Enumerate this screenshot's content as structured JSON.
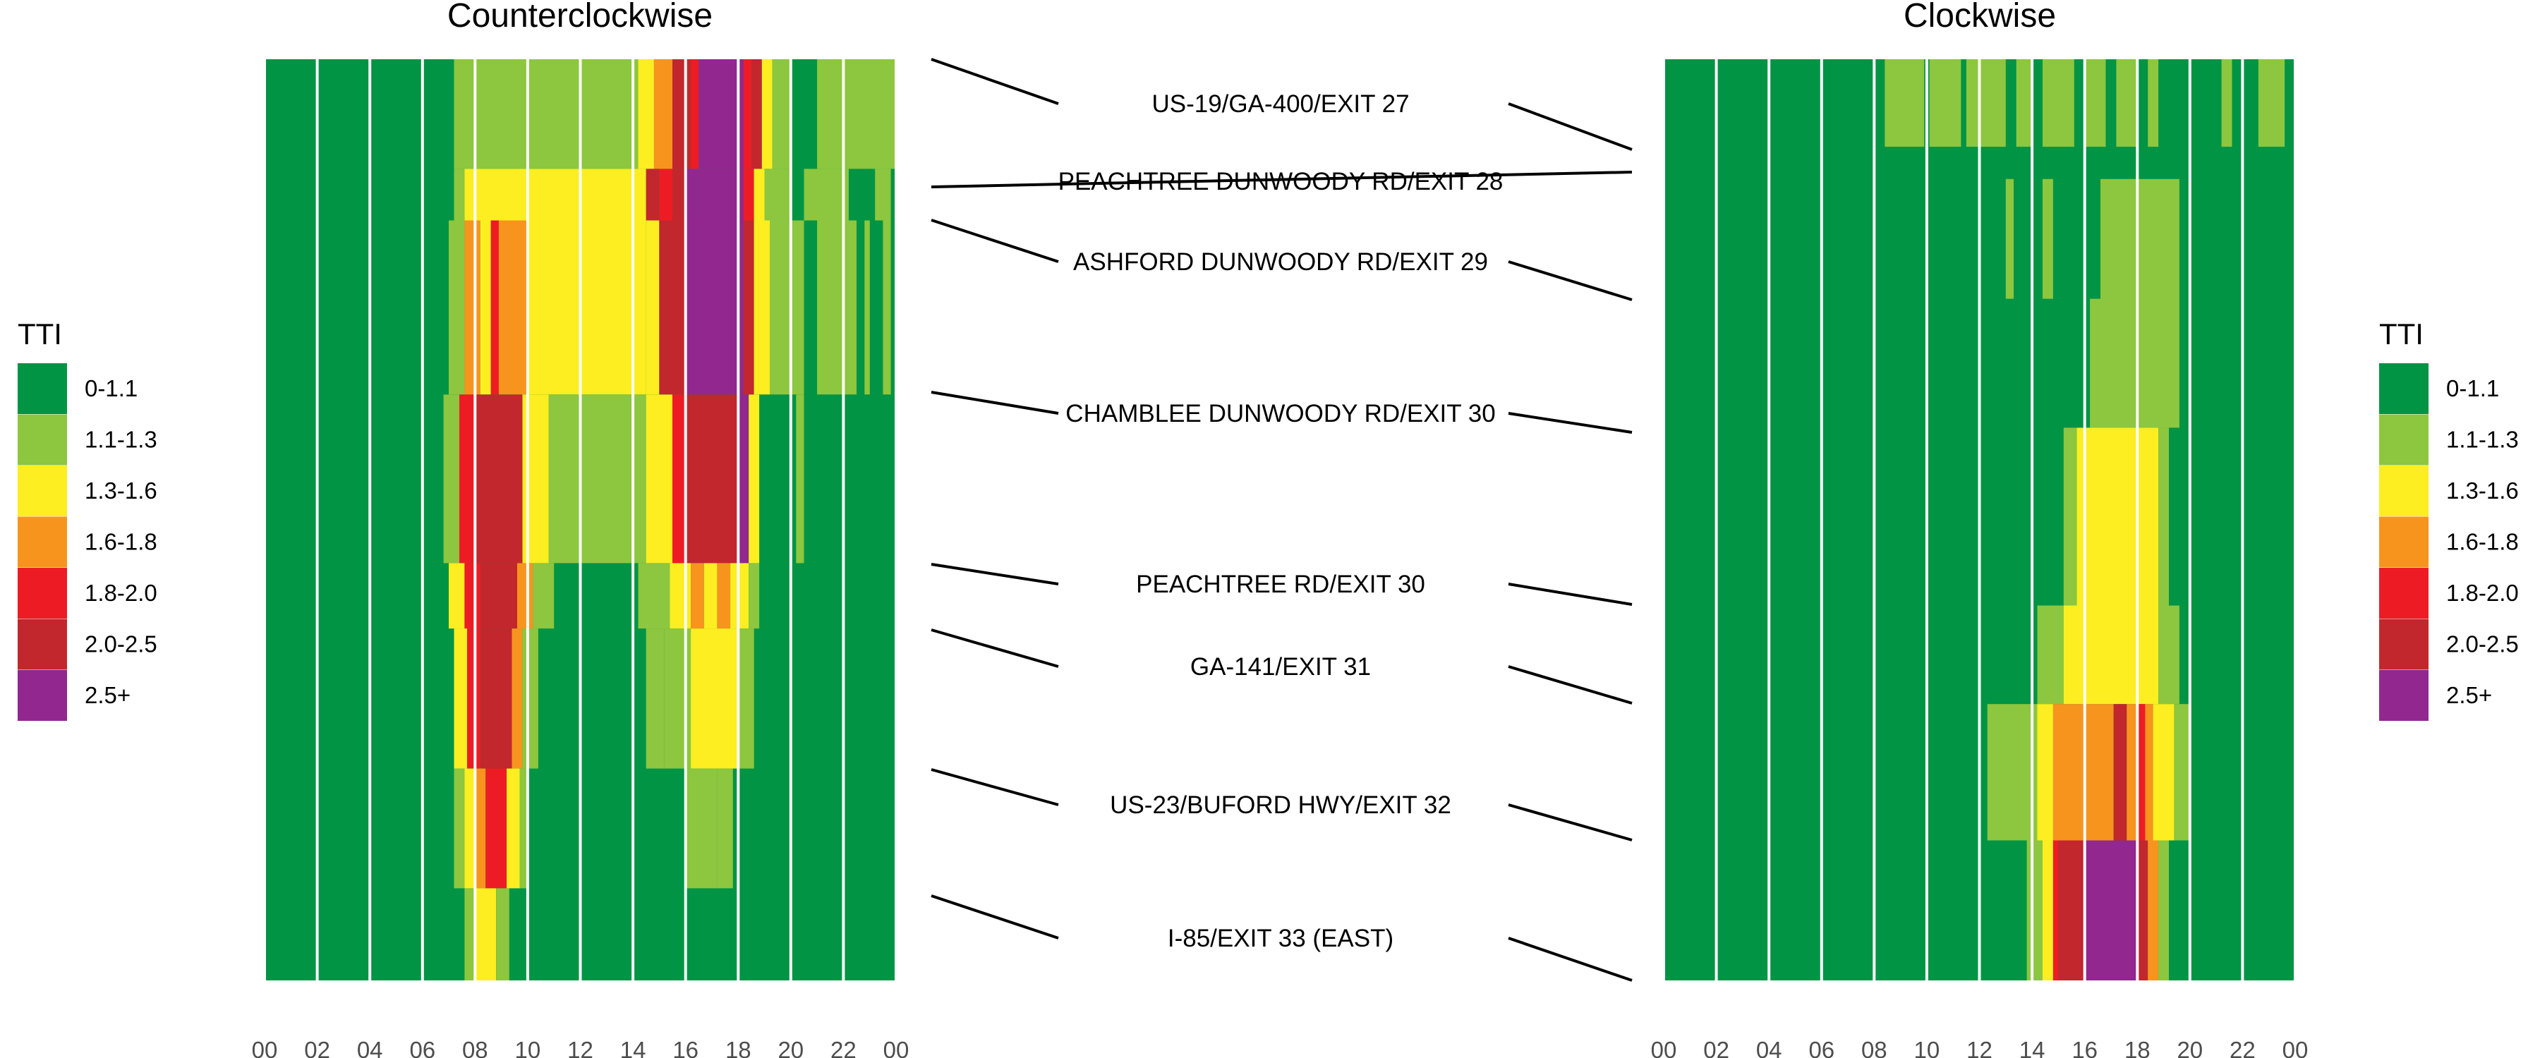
{
  "chart_data": {
    "type": "heatmap",
    "legend_title": "TTI",
    "categories": [
      "0-1.1",
      "1.1-1.3",
      "1.3-1.6",
      "1.6-1.8",
      "1.8-2.0",
      "2.0-2.5",
      "2.5+"
    ],
    "colors": [
      "#009444",
      "#8dc63f",
      "#fcee21",
      "#f7941e",
      "#ed1c24",
      "#c1272d",
      "#92278f"
    ],
    "x_tick_labels": [
      "00",
      "02",
      "04",
      "06",
      "08",
      "10",
      "12",
      "14",
      "16",
      "18",
      "20",
      "22",
      "00"
    ],
    "x_range_hours": [
      0,
      24
    ],
    "exits": [
      "US-19/GA-400/EXIT 27",
      "PEACHTREE DUNWOODY RD/EXIT 28",
      "ASHFORD DUNWOODY RD/EXIT 29",
      "CHAMBLEE DUNWOODY RD/EXIT 30",
      "PEACHTREE RD/EXIT 30",
      "GA-141/EXIT 31",
      "US-23/BUFORD HWY/EXIT 32",
      "I-85/EXIT 33 (EAST)"
    ],
    "panels": [
      {
        "title": "Counterclockwise",
        "y_bands": [
          0,
          0.119,
          0.175,
          0.364,
          0.547,
          0.618,
          0.77,
          0.9,
          1.0
        ],
        "cells": [
          {
            "t0": 7.2,
            "t1": 14.2,
            "y0": 0,
            "y1": 0.119,
            "c": 1
          },
          {
            "t0": 14.2,
            "t1": 14.8,
            "y0": 0,
            "y1": 0.119,
            "c": 2
          },
          {
            "t0": 14.8,
            "t1": 15.5,
            "y0": 0,
            "y1": 0.119,
            "c": 3
          },
          {
            "t0": 15.5,
            "t1": 16.2,
            "y0": 0,
            "y1": 0.119,
            "c": 5
          },
          {
            "t0": 16.2,
            "t1": 16.5,
            "y0": 0,
            "y1": 0.119,
            "c": 4
          },
          {
            "t0": 16.5,
            "t1": 18.2,
            "y0": 0,
            "y1": 0.119,
            "c": 6
          },
          {
            "t0": 18.2,
            "t1": 18.5,
            "y0": 0,
            "y1": 0.119,
            "c": 4
          },
          {
            "t0": 18.5,
            "t1": 18.9,
            "y0": 0,
            "y1": 0.119,
            "c": 5
          },
          {
            "t0": 18.9,
            "t1": 19.3,
            "y0": 0,
            "y1": 0.119,
            "c": 2
          },
          {
            "t0": 19.3,
            "t1": 20.0,
            "y0": 0,
            "y1": 0.119,
            "c": 1
          },
          {
            "t0": 21.0,
            "t1": 24.0,
            "y0": 0,
            "y1": 0.119,
            "c": 1
          },
          {
            "t0": 7.2,
            "t1": 7.6,
            "y0": 0.119,
            "y1": 0.175,
            "c": 1
          },
          {
            "t0": 7.6,
            "t1": 14.5,
            "y0": 0.119,
            "y1": 0.175,
            "c": 2
          },
          {
            "t0": 14.5,
            "t1": 15.0,
            "y0": 0.119,
            "y1": 0.175,
            "c": 5
          },
          {
            "t0": 15.0,
            "t1": 15.5,
            "y0": 0.119,
            "y1": 0.175,
            "c": 4
          },
          {
            "t0": 15.5,
            "t1": 16.0,
            "y0": 0.119,
            "y1": 0.175,
            "c": 5
          },
          {
            "t0": 16.0,
            "t1": 16.5,
            "y0": 0.119,
            "y1": 0.175,
            "c": 6
          },
          {
            "t0": 16.5,
            "t1": 18.2,
            "y0": 0.119,
            "y1": 0.175,
            "c": 6
          },
          {
            "t0": 18.2,
            "t1": 18.6,
            "y0": 0.119,
            "y1": 0.175,
            "c": 4
          },
          {
            "t0": 18.6,
            "t1": 19.0,
            "y0": 0.119,
            "y1": 0.175,
            "c": 2
          },
          {
            "t0": 19.0,
            "t1": 20.0,
            "y0": 0.119,
            "y1": 0.175,
            "c": 1
          },
          {
            "t0": 20.5,
            "t1": 22.2,
            "y0": 0.119,
            "y1": 0.175,
            "c": 1
          },
          {
            "t0": 23.2,
            "t1": 23.8,
            "y0": 0.119,
            "y1": 0.175,
            "c": 1
          },
          {
            "t0": 7.0,
            "t1": 7.6,
            "y0": 0.175,
            "y1": 0.364,
            "c": 1
          },
          {
            "t0": 7.6,
            "t1": 8.2,
            "y0": 0.175,
            "y1": 0.364,
            "c": 3
          },
          {
            "t0": 8.2,
            "t1": 8.6,
            "y0": 0.175,
            "y1": 0.364,
            "c": 2
          },
          {
            "t0": 8.6,
            "t1": 8.9,
            "y0": 0.175,
            "y1": 0.364,
            "c": 4
          },
          {
            "t0": 8.9,
            "t1": 10.0,
            "y0": 0.175,
            "y1": 0.364,
            "c": 3
          },
          {
            "t0": 10.0,
            "t1": 14.5,
            "y0": 0.175,
            "y1": 0.364,
            "c": 2
          },
          {
            "t0": 14.5,
            "t1": 15.0,
            "y0": 0.175,
            "y1": 0.364,
            "c": 2
          },
          {
            "t0": 15.0,
            "t1": 16.0,
            "y0": 0.175,
            "y1": 0.364,
            "c": 5
          },
          {
            "t0": 16.0,
            "t1": 18.2,
            "y0": 0.175,
            "y1": 0.364,
            "c": 6
          },
          {
            "t0": 18.2,
            "t1": 18.6,
            "y0": 0.175,
            "y1": 0.364,
            "c": 5
          },
          {
            "t0": 18.6,
            "t1": 19.2,
            "y0": 0.175,
            "y1": 0.364,
            "c": 2
          },
          {
            "t0": 19.2,
            "t1": 20.5,
            "y0": 0.175,
            "y1": 0.364,
            "c": 1
          },
          {
            "t0": 21.0,
            "t1": 22.5,
            "y0": 0.175,
            "y1": 0.364,
            "c": 1
          },
          {
            "t0": 22.8,
            "t1": 23.0,
            "y0": 0.175,
            "y1": 0.364,
            "c": 1
          },
          {
            "t0": 23.5,
            "t1": 23.8,
            "y0": 0.175,
            "y1": 0.364,
            "c": 1
          },
          {
            "t0": 6.8,
            "t1": 7.4,
            "y0": 0.364,
            "y1": 0.547,
            "c": 1
          },
          {
            "t0": 7.4,
            "t1": 8.0,
            "y0": 0.364,
            "y1": 0.547,
            "c": 4
          },
          {
            "t0": 8.0,
            "t1": 9.8,
            "y0": 0.364,
            "y1": 0.547,
            "c": 5
          },
          {
            "t0": 9.8,
            "t1": 10.8,
            "y0": 0.364,
            "y1": 0.547,
            "c": 2
          },
          {
            "t0": 10.8,
            "t1": 14.5,
            "y0": 0.364,
            "y1": 0.547,
            "c": 1
          },
          {
            "t0": 14.5,
            "t1": 15.5,
            "y0": 0.364,
            "y1": 0.547,
            "c": 2
          },
          {
            "t0": 15.5,
            "t1": 16.0,
            "y0": 0.364,
            "y1": 0.547,
            "c": 4
          },
          {
            "t0": 16.0,
            "t1": 18.0,
            "y0": 0.364,
            "y1": 0.547,
            "c": 5
          },
          {
            "t0": 18.0,
            "t1": 18.4,
            "y0": 0.364,
            "y1": 0.547,
            "c": 6
          },
          {
            "t0": 18.4,
            "t1": 18.8,
            "y0": 0.364,
            "y1": 0.547,
            "c": 2
          },
          {
            "t0": 20.2,
            "t1": 20.5,
            "y0": 0.364,
            "y1": 0.547,
            "c": 1
          },
          {
            "t0": 7.0,
            "t1": 7.6,
            "y0": 0.547,
            "y1": 0.618,
            "c": 2
          },
          {
            "t0": 7.6,
            "t1": 8.2,
            "y0": 0.547,
            "y1": 0.618,
            "c": 4
          },
          {
            "t0": 8.2,
            "t1": 9.6,
            "y0": 0.547,
            "y1": 0.618,
            "c": 5
          },
          {
            "t0": 9.6,
            "t1": 10.2,
            "y0": 0.547,
            "y1": 0.618,
            "c": 3
          },
          {
            "t0": 10.2,
            "t1": 11.0,
            "y0": 0.547,
            "y1": 0.618,
            "c": 1
          },
          {
            "t0": 14.2,
            "t1": 15.4,
            "y0": 0.547,
            "y1": 0.618,
            "c": 1
          },
          {
            "t0": 15.4,
            "t1": 16.2,
            "y0": 0.547,
            "y1": 0.618,
            "c": 2
          },
          {
            "t0": 16.2,
            "t1": 16.7,
            "y0": 0.547,
            "y1": 0.618,
            "c": 3
          },
          {
            "t0": 16.7,
            "t1": 17.2,
            "y0": 0.547,
            "y1": 0.618,
            "c": 2
          },
          {
            "t0": 17.2,
            "t1": 17.7,
            "y0": 0.547,
            "y1": 0.618,
            "c": 3
          },
          {
            "t0": 17.7,
            "t1": 18.4,
            "y0": 0.547,
            "y1": 0.618,
            "c": 2
          },
          {
            "t0": 18.4,
            "t1": 18.8,
            "y0": 0.547,
            "y1": 0.618,
            "c": 1
          },
          {
            "t0": 7.2,
            "t1": 7.7,
            "y0": 0.618,
            "y1": 0.77,
            "c": 2
          },
          {
            "t0": 7.7,
            "t1": 8.2,
            "y0": 0.618,
            "y1": 0.77,
            "c": 4
          },
          {
            "t0": 8.2,
            "t1": 9.4,
            "y0": 0.618,
            "y1": 0.77,
            "c": 5
          },
          {
            "t0": 9.4,
            "t1": 9.8,
            "y0": 0.618,
            "y1": 0.77,
            "c": 3
          },
          {
            "t0": 9.8,
            "t1": 10.4,
            "y0": 0.618,
            "y1": 0.77,
            "c": 1
          },
          {
            "t0": 14.5,
            "t1": 15.2,
            "y0": 0.618,
            "y1": 0.77,
            "c": 1
          },
          {
            "t0": 15.2,
            "t1": 16.2,
            "y0": 0.618,
            "y1": 0.77,
            "c": 1
          },
          {
            "t0": 16.2,
            "t1": 18.0,
            "y0": 0.618,
            "y1": 0.77,
            "c": 2
          },
          {
            "t0": 18.0,
            "t1": 18.6,
            "y0": 0.618,
            "y1": 0.77,
            "c": 1
          },
          {
            "t0": 7.2,
            "t1": 7.6,
            "y0": 0.77,
            "y1": 0.9,
            "c": 1
          },
          {
            "t0": 7.6,
            "t1": 8.0,
            "y0": 0.77,
            "y1": 0.9,
            "c": 2
          },
          {
            "t0": 8.0,
            "t1": 8.4,
            "y0": 0.77,
            "y1": 0.9,
            "c": 3
          },
          {
            "t0": 8.4,
            "t1": 9.2,
            "y0": 0.77,
            "y1": 0.9,
            "c": 4
          },
          {
            "t0": 9.2,
            "t1": 9.7,
            "y0": 0.77,
            "y1": 0.9,
            "c": 2
          },
          {
            "t0": 9.7,
            "t1": 10.0,
            "y0": 0.77,
            "y1": 0.9,
            "c": 1
          },
          {
            "t0": 16.0,
            "t1": 16.6,
            "y0": 0.77,
            "y1": 0.9,
            "c": 1
          },
          {
            "t0": 16.6,
            "t1": 17.2,
            "y0": 0.77,
            "y1": 0.9,
            "c": 1
          },
          {
            "t0": 17.2,
            "t1": 17.8,
            "y0": 0.77,
            "y1": 0.9,
            "c": 1
          },
          {
            "t0": 7.6,
            "t1": 8.0,
            "y0": 0.9,
            "y1": 1.0,
            "c": 1
          },
          {
            "t0": 8.0,
            "t1": 8.8,
            "y0": 0.9,
            "y1": 1.0,
            "c": 2
          },
          {
            "t0": 8.8,
            "t1": 9.3,
            "y0": 0.9,
            "y1": 1.0,
            "c": 1
          }
        ]
      },
      {
        "title": "Clockwise",
        "cells": [
          {
            "t0": 8.4,
            "t1": 9.9,
            "y0": 0,
            "y1": 0.095,
            "c": 1
          },
          {
            "t0": 10.1,
            "t1": 11.3,
            "y0": 0,
            "y1": 0.095,
            "c": 1
          },
          {
            "t0": 11.5,
            "t1": 13.0,
            "y0": 0,
            "y1": 0.095,
            "c": 1
          },
          {
            "t0": 13.4,
            "t1": 14.0,
            "y0": 0,
            "y1": 0.095,
            "c": 1
          },
          {
            "t0": 14.4,
            "t1": 15.6,
            "y0": 0,
            "y1": 0.095,
            "c": 1
          },
          {
            "t0": 16.0,
            "t1": 16.8,
            "y0": 0,
            "y1": 0.095,
            "c": 1
          },
          {
            "t0": 17.2,
            "t1": 18.0,
            "y0": 0,
            "y1": 0.095,
            "c": 1
          },
          {
            "t0": 18.4,
            "t1": 18.8,
            "y0": 0,
            "y1": 0.095,
            "c": 1
          },
          {
            "t0": 21.2,
            "t1": 21.6,
            "y0": 0,
            "y1": 0.095,
            "c": 1
          },
          {
            "t0": 22.6,
            "t1": 23.6,
            "y0": 0,
            "y1": 0.095,
            "c": 1
          },
          {
            "t0": 13.0,
            "t1": 13.3,
            "y0": 0.13,
            "y1": 0.26,
            "c": 1
          },
          {
            "t0": 14.4,
            "t1": 14.8,
            "y0": 0.13,
            "y1": 0.26,
            "c": 1
          },
          {
            "t0": 16.6,
            "t1": 19.6,
            "y0": 0.13,
            "y1": 0.4,
            "c": 1
          },
          {
            "t0": 16.2,
            "t1": 16.6,
            "y0": 0.26,
            "y1": 0.4,
            "c": 1
          },
          {
            "t0": 15.2,
            "t1": 15.7,
            "y0": 0.4,
            "y1": 0.593,
            "c": 1
          },
          {
            "t0": 15.7,
            "t1": 18.8,
            "y0": 0.4,
            "y1": 0.593,
            "c": 2
          },
          {
            "t0": 18.8,
            "t1": 19.2,
            "y0": 0.4,
            "y1": 0.593,
            "c": 1
          },
          {
            "t0": 14.2,
            "t1": 15.2,
            "y0": 0.593,
            "y1": 0.7,
            "c": 1
          },
          {
            "t0": 15.2,
            "t1": 18.8,
            "y0": 0.593,
            "y1": 0.7,
            "c": 2
          },
          {
            "t0": 18.8,
            "t1": 19.6,
            "y0": 0.593,
            "y1": 0.7,
            "c": 1
          },
          {
            "t0": 12.3,
            "t1": 14.2,
            "y0": 0.7,
            "y1": 0.848,
            "c": 1
          },
          {
            "t0": 14.2,
            "t1": 14.8,
            "y0": 0.7,
            "y1": 0.848,
            "c": 2
          },
          {
            "t0": 14.8,
            "t1": 17.1,
            "y0": 0.7,
            "y1": 0.848,
            "c": 3
          },
          {
            "t0": 17.1,
            "t1": 17.6,
            "y0": 0.7,
            "y1": 0.848,
            "c": 5
          },
          {
            "t0": 17.6,
            "t1": 18.0,
            "y0": 0.7,
            "y1": 0.848,
            "c": 3
          },
          {
            "t0": 18.0,
            "t1": 18.3,
            "y0": 0.7,
            "y1": 0.848,
            "c": 4
          },
          {
            "t0": 18.3,
            "t1": 18.6,
            "y0": 0.7,
            "y1": 0.848,
            "c": 3
          },
          {
            "t0": 18.6,
            "t1": 19.4,
            "y0": 0.7,
            "y1": 0.848,
            "c": 2
          },
          {
            "t0": 19.4,
            "t1": 20.0,
            "y0": 0.7,
            "y1": 0.848,
            "c": 1
          },
          {
            "t0": 13.8,
            "t1": 14.4,
            "y0": 0.848,
            "y1": 1.0,
            "c": 1
          },
          {
            "t0": 14.4,
            "t1": 14.8,
            "y0": 0.848,
            "y1": 1.0,
            "c": 2
          },
          {
            "t0": 14.8,
            "t1": 15.0,
            "y0": 0.848,
            "y1": 1.0,
            "c": 4
          },
          {
            "t0": 15.0,
            "t1": 16.0,
            "y0": 0.848,
            "y1": 1.0,
            "c": 5
          },
          {
            "t0": 16.0,
            "t1": 18.0,
            "y0": 0.848,
            "y1": 1.0,
            "c": 6
          },
          {
            "t0": 18.0,
            "t1": 18.4,
            "y0": 0.848,
            "y1": 1.0,
            "c": 5
          },
          {
            "t0": 18.4,
            "t1": 18.8,
            "y0": 0.848,
            "y1": 1.0,
            "c": 3
          },
          {
            "t0": 18.8,
            "t1": 19.2,
            "y0": 0.848,
            "y1": 1.0,
            "c": 1
          }
        ]
      }
    ]
  }
}
